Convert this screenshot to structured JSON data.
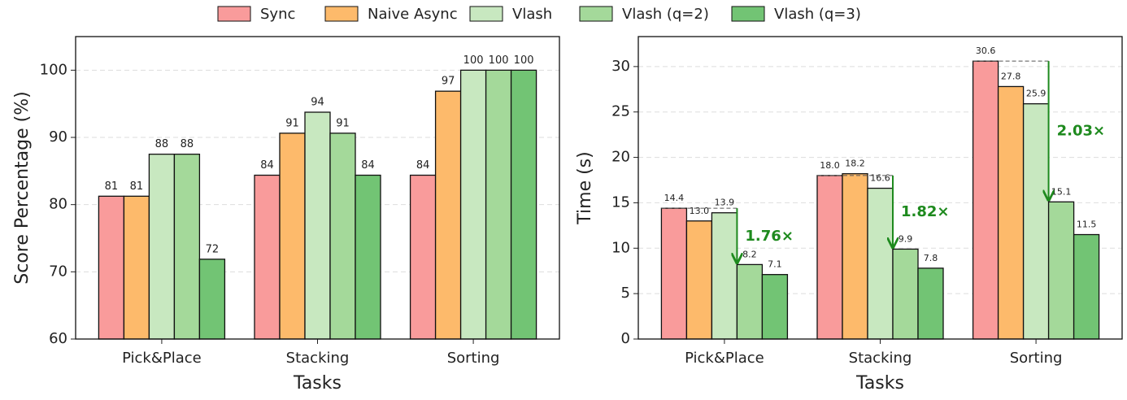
{
  "chart_data": [
    {
      "type": "bar",
      "xlabel": "Tasks",
      "ylabel": "Score Percentage (%)",
      "categories": [
        "Pick&Place",
        "Stacking",
        "Sorting"
      ],
      "ylim": [
        60,
        105
      ],
      "yticks": [
        60,
        70,
        80,
        90,
        100
      ],
      "grid": true,
      "series": [
        {
          "name": "Sync",
          "color": "#f99b9b",
          "values": [
            81.25,
            84.375,
            84.375
          ],
          "value_labels": [
            "81",
            "84",
            "84"
          ]
        },
        {
          "name": "Naive Async",
          "color": "#fdba6b",
          "values": [
            81.25,
            90.625,
            96.875
          ],
          "value_labels": [
            "81",
            "91",
            "97"
          ]
        },
        {
          "name": "Vlash",
          "color": "#c8e8c0",
          "values": [
            87.5,
            93.75,
            100
          ],
          "value_labels": [
            "88",
            "94",
            "100"
          ]
        },
        {
          "name": "Vlash (q=2)",
          "color": "#a4d99a",
          "values": [
            87.5,
            90.625,
            100
          ],
          "value_labels": [
            "88",
            "91",
            "100"
          ]
        },
        {
          "name": "Vlash (q=3)",
          "color": "#72c474",
          "values": [
            71.875,
            84.375,
            100
          ],
          "value_labels": [
            "72",
            "84",
            "100"
          ]
        }
      ]
    },
    {
      "type": "bar",
      "xlabel": "Tasks",
      "ylabel": "Time (s)",
      "categories": [
        "Pick&Place",
        "Stacking",
        "Sorting"
      ],
      "ylim": [
        0,
        33.3
      ],
      "yticks": [
        0,
        5,
        10,
        15,
        20,
        25,
        30
      ],
      "grid": true,
      "annotations": [
        "1.76×",
        "1.82×",
        "2.03×"
      ],
      "series": [
        {
          "color": "#f99b9b",
          "values": [
            14.4,
            18,
            30.6
          ],
          "value_labels": [
            "14.4",
            "18.0",
            "30.6"
          ]
        },
        {
          "color": "#fdba6b",
          "values": [
            13,
            18.2,
            27.8
          ],
          "value_labels": [
            "13.0",
            "18.2",
            "27.8"
          ]
        },
        {
          "color": "#c8e8c0",
          "values": [
            13.9,
            16.6,
            25.9
          ],
          "value_labels": [
            "13.9",
            "16.6",
            "25.9"
          ]
        },
        {
          "color": "#a4d99a",
          "values": [
            8.2,
            9.9,
            15.1
          ],
          "value_labels": [
            "8.2",
            "9.9",
            "15.1"
          ]
        },
        {
          "color": "#72c474",
          "values": [
            7.1,
            7.8,
            11.5
          ],
          "value_labels": [
            "7.1",
            "7.8",
            "11.5"
          ]
        }
      ]
    }
  ]
}
